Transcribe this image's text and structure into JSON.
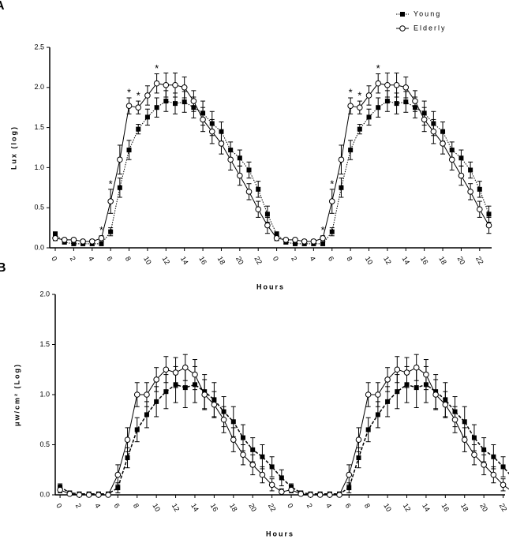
{
  "chart_data": [
    {
      "type": "line",
      "panel": "A",
      "ylabel": "Lux (log)",
      "xlabel": "Hours",
      "x": [
        0,
        1,
        2,
        3,
        4,
        5,
        6,
        7,
        8,
        9,
        10,
        11,
        12,
        13,
        14,
        15,
        16,
        17,
        18,
        19,
        20,
        21,
        22,
        23,
        24,
        25,
        26,
        27,
        28,
        29,
        30,
        31,
        32,
        33,
        34,
        35,
        36,
        37,
        38,
        39,
        40,
        41,
        42,
        43,
        44,
        45,
        46,
        47
      ],
      "xlim": [
        -0.6,
        47.3
      ],
      "xticks": [
        0,
        2,
        4,
        6,
        8,
        10,
        12,
        14,
        16,
        18,
        20,
        22,
        {
          "value": 24,
          "label": "0"
        },
        {
          "value": 26,
          "label": "2"
        },
        {
          "value": 28,
          "label": "4"
        },
        {
          "value": 30,
          "label": "6"
        },
        {
          "value": 32,
          "label": "8"
        },
        {
          "value": 34,
          "label": "10"
        },
        {
          "value": 36,
          "label": "12"
        },
        {
          "value": 38,
          "label": "14"
        },
        {
          "value": 40,
          "label": "16"
        },
        {
          "value": 42,
          "label": "18"
        },
        {
          "value": 44,
          "label": "20"
        },
        {
          "value": 46,
          "label": "22"
        }
      ],
      "ylim": [
        0,
        2.5
      ],
      "yticks": [
        {
          "value": 0,
          "label": "0.0"
        },
        0.5,
        {
          "value": 1,
          "label": "1.0"
        },
        1.5,
        {
          "value": 2,
          "label": "2.0"
        },
        2.5
      ],
      "legend": "upper right",
      "series": [
        {
          "name": "Young",
          "color": "#000000",
          "marker": "square",
          "line_style": "dotted",
          "values": [
            0.17,
            0.07,
            0.05,
            0.05,
            0.05,
            0.05,
            0.2,
            0.75,
            1.22,
            1.48,
            1.63,
            1.75,
            1.83,
            1.8,
            1.82,
            1.75,
            1.68,
            1.55,
            1.45,
            1.22,
            1.12,
            0.97,
            0.73,
            0.42,
            0.17,
            0.07,
            0.05,
            0.05,
            0.05,
            0.05,
            0.2,
            0.75,
            1.22,
            1.48,
            1.63,
            1.75,
            1.83,
            1.8,
            1.82,
            1.75,
            1.68,
            1.55,
            1.45,
            1.22,
            1.12,
            0.97,
            0.73,
            0.42
          ],
          "errors": [
            0.03,
            0.02,
            0.02,
            0.02,
            0.02,
            0.02,
            0.05,
            0.12,
            0.12,
            0.06,
            0.1,
            0.12,
            0.13,
            0.13,
            0.13,
            0.13,
            0.15,
            0.15,
            0.12,
            0.1,
            0.1,
            0.1,
            0.1,
            0.1,
            0.03,
            0.02,
            0.02,
            0.02,
            0.02,
            0.02,
            0.05,
            0.12,
            0.12,
            0.06,
            0.1,
            0.12,
            0.13,
            0.13,
            0.13,
            0.13,
            0.15,
            0.15,
            0.12,
            0.1,
            0.1,
            0.1,
            0.1,
            0.1
          ]
        },
        {
          "name": "Elderly",
          "color": "#000000",
          "marker": "circle",
          "line_style": "solid",
          "values": [
            0.12,
            0.1,
            0.1,
            0.08,
            0.08,
            0.12,
            0.58,
            1.1,
            1.77,
            1.75,
            1.9,
            2.05,
            2.03,
            2.03,
            2.0,
            1.83,
            1.6,
            1.45,
            1.3,
            1.1,
            0.9,
            0.7,
            0.48,
            0.28,
            0.12,
            0.1,
            0.1,
            0.08,
            0.08,
            0.12,
            0.58,
            1.1,
            1.77,
            1.75,
            1.9,
            2.05,
            2.03,
            2.03,
            2.0,
            1.83,
            1.6,
            1.45,
            1.3,
            1.1,
            0.9,
            0.7,
            0.48,
            0.28
          ],
          "errors": [
            0.03,
            0.02,
            0.02,
            0.02,
            0.02,
            0.03,
            0.15,
            0.18,
            0.1,
            0.08,
            0.12,
            0.12,
            0.15,
            0.15,
            0.13,
            0.13,
            0.15,
            0.15,
            0.13,
            0.13,
            0.12,
            0.1,
            0.1,
            0.1,
            0.03,
            0.02,
            0.02,
            0.02,
            0.02,
            0.03,
            0.15,
            0.18,
            0.1,
            0.08,
            0.12,
            0.12,
            0.15,
            0.15,
            0.13,
            0.13,
            0.15,
            0.15,
            0.13,
            0.13,
            0.12,
            0.1,
            0.1,
            0.1
          ]
        }
      ],
      "annotations": [
        {
          "text": "*",
          "x": 5
        },
        {
          "text": "*",
          "x": 6
        },
        {
          "text": "*",
          "x": 8
        },
        {
          "text": "*",
          "x": 9
        },
        {
          "text": "*",
          "x": 11
        },
        {
          "text": "*",
          "x": 29
        },
        {
          "text": "*",
          "x": 30
        },
        {
          "text": "*",
          "x": 32
        },
        {
          "text": "*",
          "x": 33
        },
        {
          "text": "*",
          "x": 35
        }
      ]
    },
    {
      "type": "line",
      "panel": "B",
      "ylabel": "μw/cm² (Log)",
      "xlabel": "Hours",
      "x": [
        0,
        1,
        2,
        3,
        4,
        5,
        6,
        7,
        8,
        9,
        10,
        11,
        12,
        13,
        14,
        15,
        16,
        17,
        18,
        19,
        20,
        21,
        22,
        23,
        24,
        25,
        26,
        27,
        28,
        29,
        30,
        31,
        32,
        33,
        34,
        35,
        36,
        37,
        38,
        39,
        40,
        41,
        42,
        43,
        44,
        45,
        46,
        47
      ],
      "xlim": [
        -0.5,
        46.2
      ],
      "xticks": [
        0,
        2,
        4,
        6,
        8,
        10,
        12,
        14,
        16,
        18,
        20,
        22,
        {
          "value": 24,
          "label": "0"
        },
        {
          "value": 26,
          "label": "2"
        },
        {
          "value": 28,
          "label": "4"
        },
        {
          "value": 30,
          "label": "6"
        },
        {
          "value": 32,
          "label": "8"
        },
        {
          "value": 34,
          "label": "10"
        },
        {
          "value": 36,
          "label": "12"
        },
        {
          "value": 38,
          "label": "14"
        },
        {
          "value": 40,
          "label": "16"
        },
        {
          "value": 42,
          "label": "18"
        },
        {
          "value": 44,
          "label": "20"
        },
        {
          "value": 46,
          "label": "22"
        }
      ],
      "ylim": [
        0,
        2
      ],
      "yticks": [
        {
          "value": 0,
          "label": "0.0"
        },
        0.5,
        {
          "value": 1,
          "label": "1.0"
        },
        1.5,
        {
          "value": 2,
          "label": "2.0"
        }
      ],
      "series": [
        {
          "name": "Young",
          "color": "#000000",
          "marker": "square",
          "line_style": "dashed",
          "values": [
            0.08,
            0.02,
            0.01,
            0.01,
            0.01,
            0.01,
            0.07,
            0.37,
            0.65,
            0.8,
            0.93,
            1.03,
            1.1,
            1.07,
            1.1,
            1.03,
            0.95,
            0.83,
            0.73,
            0.57,
            0.45,
            0.38,
            0.28,
            0.17,
            0.08,
            0.02,
            0.01,
            0.01,
            0.01,
            0.01,
            0.07,
            0.37,
            0.65,
            0.8,
            0.93,
            1.03,
            1.1,
            1.07,
            1.1,
            1.03,
            0.95,
            0.83,
            0.73,
            0.57,
            0.45,
            0.38,
            0.28,
            0.17
          ],
          "errors": [
            0.03,
            0.01,
            0.01,
            0.01,
            0.01,
            0.01,
            0.05,
            0.1,
            0.12,
            0.13,
            0.15,
            0.17,
            0.18,
            0.2,
            0.18,
            0.17,
            0.17,
            0.15,
            0.15,
            0.13,
            0.12,
            0.12,
            0.1,
            0.08,
            0.03,
            0.01,
            0.01,
            0.01,
            0.01,
            0.01,
            0.05,
            0.1,
            0.12,
            0.13,
            0.15,
            0.17,
            0.18,
            0.2,
            0.18,
            0.17,
            0.17,
            0.15,
            0.15,
            0.13,
            0.12,
            0.12,
            0.1,
            0.08
          ]
        },
        {
          "name": "Elderly",
          "color": "#000000",
          "marker": "circle",
          "line_style": "solid",
          "values": [
            0.05,
            0.01,
            0,
            0,
            0,
            0,
            0.2,
            0.55,
            1.0,
            1.0,
            1.15,
            1.25,
            1.22,
            1.27,
            1.2,
            1.0,
            0.9,
            0.75,
            0.55,
            0.4,
            0.3,
            0.2,
            0.1,
            0.03,
            0.05,
            0.01,
            0,
            0,
            0,
            0,
            0.2,
            0.55,
            1.0,
            1.0,
            1.15,
            1.25,
            1.22,
            1.27,
            1.2,
            1.0,
            0.9,
            0.75,
            0.55,
            0.4,
            0.3,
            0.2,
            0.1,
            0.03
          ],
          "errors": [
            0.03,
            0.01,
            0.01,
            0.01,
            0.01,
            0.01,
            0.1,
            0.12,
            0.12,
            0.12,
            0.12,
            0.13,
            0.15,
            0.13,
            0.15,
            0.15,
            0.13,
            0.13,
            0.12,
            0.1,
            0.1,
            0.08,
            0.06,
            0.03,
            0.03,
            0.01,
            0.01,
            0.01,
            0.01,
            0.01,
            0.1,
            0.12,
            0.12,
            0.12,
            0.12,
            0.13,
            0.15,
            0.13,
            0.15,
            0.15,
            0.13,
            0.13,
            0.12,
            0.1,
            0.1,
            0.08,
            0.06,
            0.03
          ]
        }
      ]
    }
  ]
}
